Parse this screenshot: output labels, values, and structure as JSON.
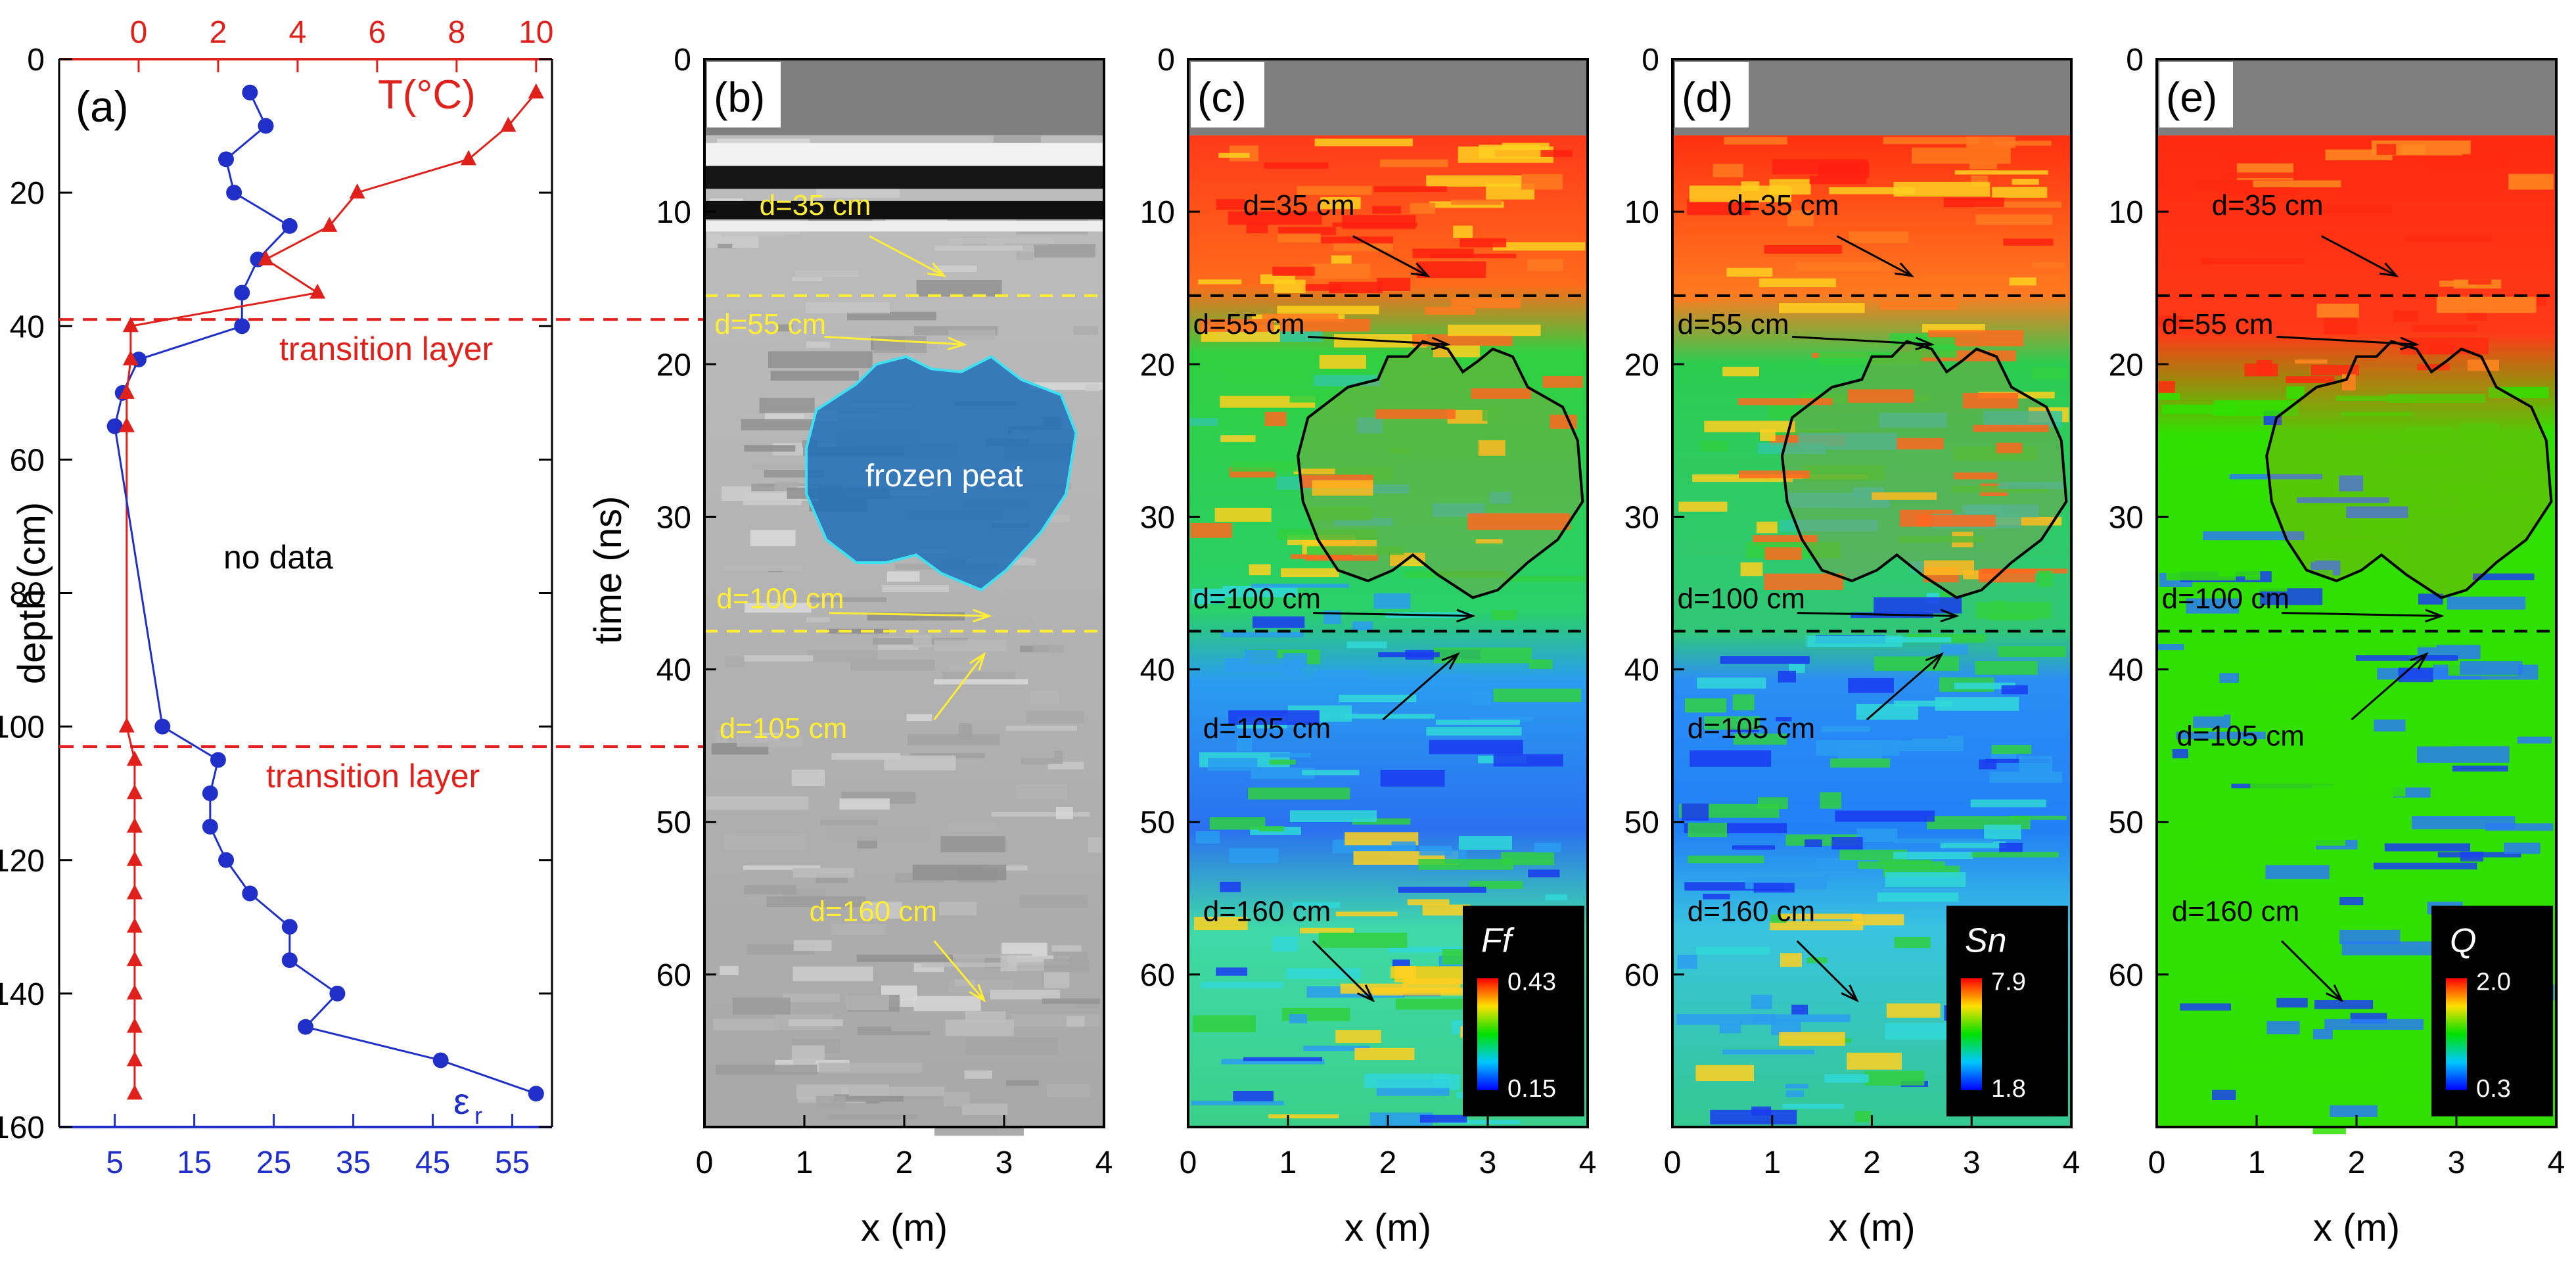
{
  "chart_data": [
    {
      "panel": "(a)",
      "type": "line",
      "ylabel": "depth (cm)",
      "ylim": [
        160,
        0
      ],
      "yticks": [
        0,
        20,
        40,
        60,
        80,
        100,
        120,
        140,
        160
      ],
      "top_axis": {
        "label": "T(°C)",
        "range": [
          -2,
          10.4
        ],
        "ticks": [
          0,
          2,
          4,
          6,
          8,
          10
        ],
        "color": "#e0201b"
      },
      "bottom_axis": {
        "label": "ε",
        "label_sub": "r",
        "range": [
          -2,
          60
        ],
        "ticks": [
          5,
          15,
          25,
          35,
          45,
          55
        ],
        "color": "#1f2fc8"
      },
      "series": [
        {
          "name": "eps_r",
          "color": "#1f2fc8",
          "marker": "circle",
          "points": [
            [
              22,
              5
            ],
            [
              24,
              10
            ],
            [
              19,
              15
            ],
            [
              20,
              20
            ],
            [
              27,
              25
            ],
            [
              23,
              30
            ],
            [
              21,
              35
            ],
            [
              21,
              40
            ],
            [
              8,
              45
            ],
            [
              6,
              50
            ],
            [
              5,
              55
            ],
            [
              11,
              100
            ],
            [
              18,
              105
            ],
            [
              17,
              110
            ],
            [
              17,
              115
            ],
            [
              19,
              120
            ],
            [
              22,
              125
            ],
            [
              27,
              130
            ],
            [
              27,
              135
            ],
            [
              33,
              140
            ],
            [
              29,
              145
            ],
            [
              46,
              150
            ],
            [
              58,
              155
            ]
          ]
        },
        {
          "name": "T",
          "color": "#e0201b",
          "marker": "triangle",
          "points": [
            [
              10.0,
              5
            ],
            [
              9.3,
              10
            ],
            [
              8.3,
              15
            ],
            [
              5.5,
              20
            ],
            [
              4.8,
              25
            ],
            [
              3.2,
              30
            ],
            [
              4.5,
              35
            ],
            [
              -0.2,
              40
            ],
            [
              -0.2,
              45
            ],
            [
              -0.3,
              50
            ],
            [
              -0.3,
              55
            ],
            [
              -0.3,
              100
            ],
            [
              -0.1,
              105
            ],
            [
              -0.1,
              110
            ],
            [
              -0.1,
              115
            ],
            [
              -0.1,
              120
            ],
            [
              -0.1,
              125
            ],
            [
              -0.1,
              130
            ],
            [
              -0.1,
              135
            ],
            [
              -0.1,
              140
            ],
            [
              -0.1,
              145
            ],
            [
              -0.1,
              150
            ],
            [
              -0.1,
              155
            ]
          ]
        }
      ],
      "hlines": [
        {
          "y": 39,
          "label": "transition layer"
        },
        {
          "y": 103,
          "label": "transition layer"
        }
      ],
      "annotations": [
        "no data"
      ]
    },
    {
      "panel": "(b)",
      "type": "heatmap",
      "colormap": "gray",
      "xlabel": "x (m)",
      "ylabel": "time (ns)",
      "xlim": [
        0,
        4
      ],
      "ylim": [
        70,
        0
      ],
      "xticks": [
        0,
        1,
        2,
        3,
        4
      ],
      "yticks": [
        0,
        10,
        20,
        30,
        40,
        50,
        60
      ],
      "region_label": "frozen peat",
      "hlines": [
        15.5,
        37.5
      ],
      "annotations": [
        "d=35 cm",
        "d=55 cm",
        "d=100 cm",
        "d=105 cm",
        "d=160 cm"
      ]
    },
    {
      "panel": "(c)",
      "type": "heatmap",
      "colormap": "jet",
      "xlabel": "x (m)",
      "xlim": [
        0,
        4
      ],
      "ylim": [
        70,
        0
      ],
      "xticks": [
        0,
        1,
        2,
        3,
        4
      ],
      "yticks": [
        0,
        10,
        20,
        30,
        40,
        50,
        60
      ],
      "colorbar": {
        "label": "Ff",
        "max": "0.43",
        "min": "0.15"
      },
      "hlines": [
        15.5,
        37.5
      ],
      "annotations": [
        "d=35 cm",
        "d=55 cm",
        "d=100 cm",
        "d=105 cm",
        "d=160 cm"
      ]
    },
    {
      "panel": "(d)",
      "type": "heatmap",
      "colormap": "jet",
      "xlabel": "x (m)",
      "xlim": [
        0,
        4
      ],
      "ylim": [
        70,
        0
      ],
      "xticks": [
        0,
        1,
        2,
        3,
        4
      ],
      "yticks": [
        0,
        10,
        20,
        30,
        40,
        50,
        60
      ],
      "colorbar": {
        "label": "Sn",
        "max": "7.9",
        "min": "1.8"
      },
      "hlines": [
        15.5,
        37.5
      ],
      "annotations": [
        "d=35 cm",
        "d=55 cm",
        "d=100 cm",
        "d=105 cm",
        "d=160 cm"
      ]
    },
    {
      "panel": "(e)",
      "type": "heatmap",
      "colormap": "jet",
      "xlabel": "x (m)",
      "xlim": [
        0,
        4
      ],
      "ylim": [
        70,
        0
      ],
      "xticks": [
        0,
        1,
        2,
        3,
        4
      ],
      "yticks": [
        0,
        10,
        20,
        30,
        40,
        50,
        60
      ],
      "colorbar": {
        "label": "Q",
        "max": "2.0",
        "min": "0.3"
      },
      "hlines": [
        15.5,
        37.5
      ],
      "annotations": [
        "d=35 cm",
        "d=55 cm",
        "d=100 cm",
        "d=105 cm",
        "d=160 cm"
      ]
    }
  ]
}
